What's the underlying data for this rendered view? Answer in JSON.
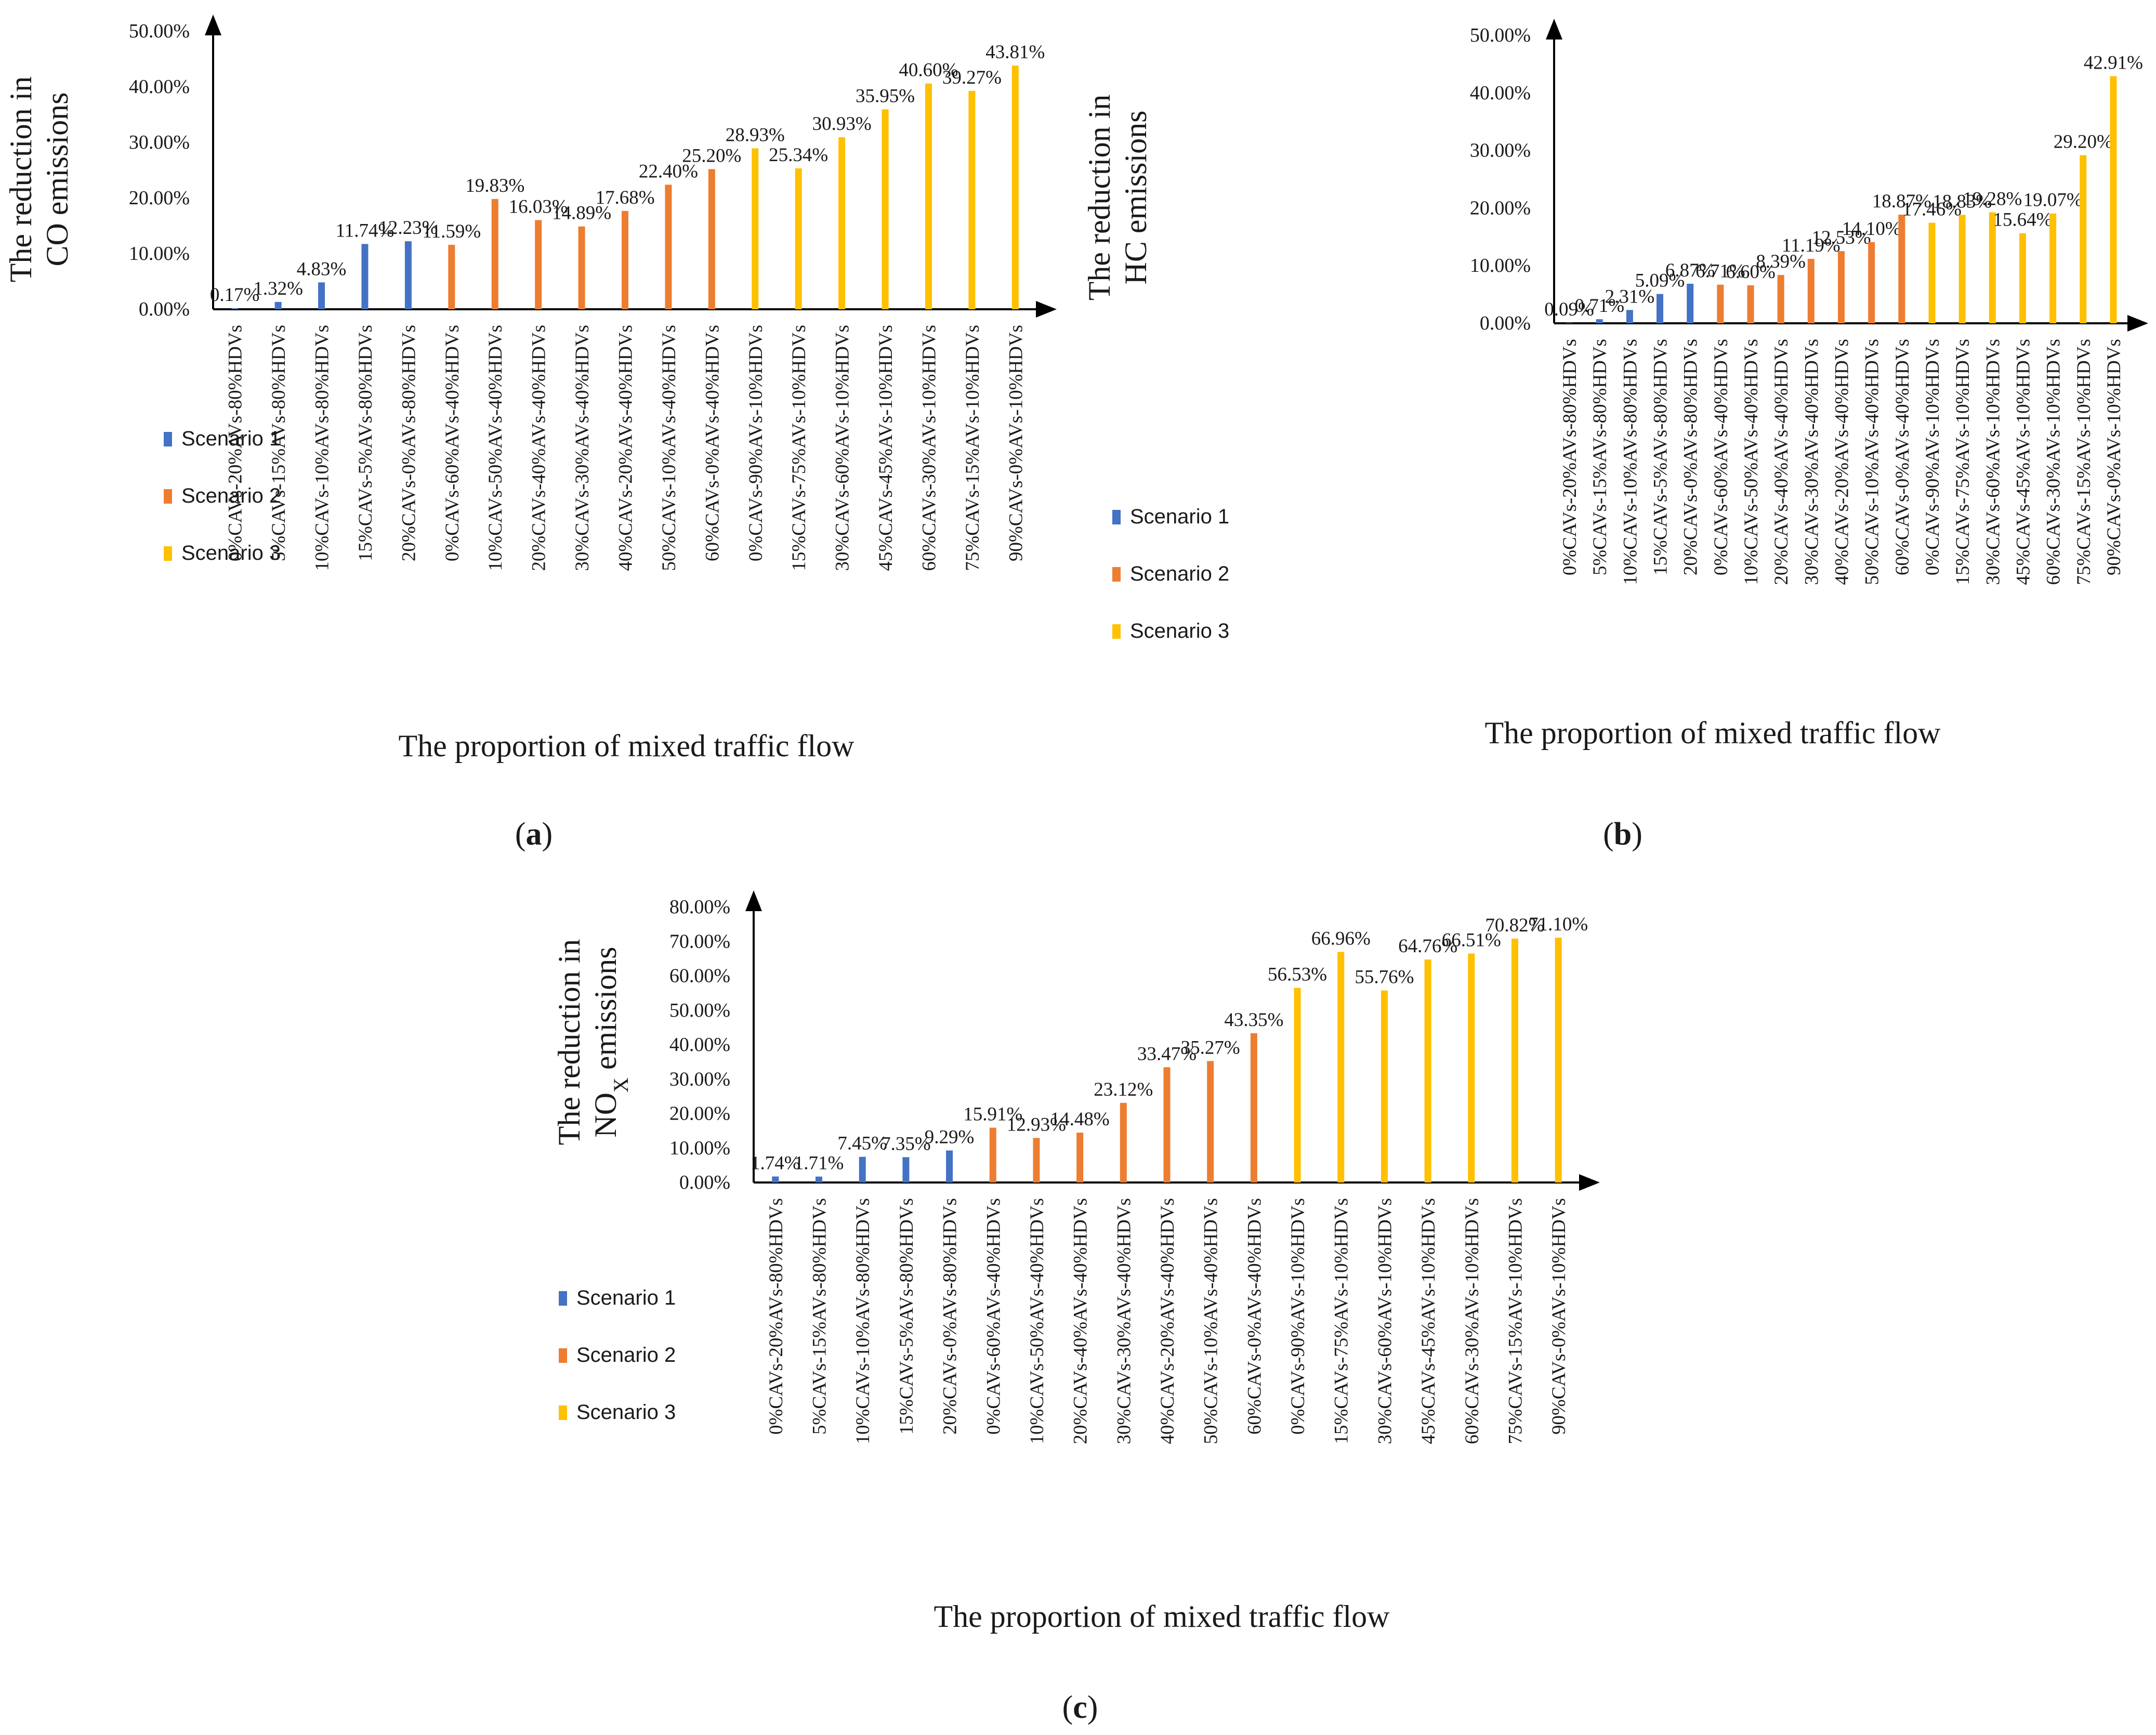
{
  "chart_data": [
    {
      "type": "bar",
      "panel_label": {
        "open": "(",
        "letter": "a",
        "close": ")"
      },
      "ylabel_line1": "The reduction in",
      "ylabel_line2": {
        "main": "CO emissions",
        "sub": ""
      },
      "xlabel": "The proportion of mixed traffic flow",
      "ylim": [
        0,
        50
      ],
      "yticks": [
        "0.00%",
        "10.00%",
        "20.00%",
        "30.00%",
        "40.00%",
        "50.00%"
      ],
      "categories": [
        "0%CAVs-20%AVs-80%HDVs",
        "5%CAVs-15%AVs-80%HDVs",
        "10%CAVs-10%AVs-80%HDVs",
        "15%CAVs-5%AVs-80%HDVs",
        "20%CAVs-0%AVs-80%HDVs",
        "0%CAVs-60%AVs-40%HDVs",
        "10%CAVs-50%AVs-40%HDVs",
        "20%CAVs-40%AVs-40%HDVs",
        "30%CAVs-30%AVs-40%HDVs",
        "40%CAVs-20%AVs-40%HDVs",
        "50%CAVs-10%AVs-40%HDVs",
        "60%CAVs-0%AVs-40%HDVs",
        "0%CAVs-90%AVs-10%HDVs",
        "15%CAVs-75%AVs-10%HDVs",
        "30%CAVs-60%AVs-10%HDVs",
        "45%CAVs-45%AVs-10%HDVs",
        "60%CAVs-30%AVs-10%HDVs",
        "75%CAVs-15%AVs-10%HDVs",
        "90%CAVs-0%AVs-10%HDVs"
      ],
      "values": [
        0.17,
        1.32,
        4.83,
        11.74,
        12.23,
        11.59,
        19.83,
        16.03,
        14.89,
        17.68,
        22.4,
        25.2,
        28.93,
        25.34,
        30.93,
        35.95,
        40.6,
        39.27,
        43.81
      ],
      "labels": [
        "0.17%",
        "1.32%",
        "4.83%",
        "11.74%",
        "12.23%",
        "11.59%",
        "19.83%",
        "16.03%",
        "14.89%",
        "17.68%",
        "22.40%",
        "25.20%",
        "28.93%",
        "25.34%",
        "30.93%",
        "35.95%",
        "40.60%",
        "39.27%",
        "43.81%"
      ],
      "scenario": [
        1,
        1,
        1,
        1,
        1,
        2,
        2,
        2,
        2,
        2,
        2,
        2,
        3,
        3,
        3,
        3,
        3,
        3,
        3
      ]
    },
    {
      "type": "bar",
      "panel_label": {
        "open": "(",
        "letter": "b",
        "close": ")"
      },
      "ylabel_line1": "The reduction in",
      "ylabel_line2": {
        "main": "HC emissions",
        "sub": ""
      },
      "xlabel": "The proportion of mixed traffic flow",
      "ylim": [
        0,
        50
      ],
      "yticks": [
        "0.00%",
        "10.00%",
        "20.00%",
        "30.00%",
        "40.00%",
        "50.00%"
      ],
      "categories": [
        "0%CAVs-20%AVs-80%HDVs",
        "5%CAVs-15%AVs-80%HDVs",
        "10%CAVs-10%AVs-80%HDVs",
        "15%CAVs-5%AVs-80%HDVs",
        "20%CAVs-0%AVs-80%HDVs",
        "0%CAVs-60%AVs-40%HDVs",
        "10%CAVs-50%AVs-40%HDVs",
        "20%CAVs-40%AVs-40%HDVs",
        "30%CAVs-30%AVs-40%HDVs",
        "40%CAVs-20%AVs-40%HDVs",
        "50%CAVs-10%AVs-40%HDVs",
        "60%CAVs-0%AVs-40%HDVs",
        "0%CAVs-90%AVs-10%HDVs",
        "15%CAVs-75%AVs-10%HDVs",
        "30%CAVs-60%AVs-10%HDVs",
        "45%CAVs-45%AVs-10%HDVs",
        "60%CAVs-30%AVs-10%HDVs",
        "75%CAVs-15%AVs-10%HDVs",
        "90%CAVs-0%AVs-10%HDVs"
      ],
      "values": [
        0.09,
        0.71,
        2.31,
        5.09,
        6.87,
        6.71,
        6.6,
        8.39,
        11.19,
        12.53,
        14.1,
        18.87,
        17.46,
        18.83,
        19.28,
        15.64,
        19.07,
        29.2,
        42.91
      ],
      "labels": [
        "0.09%",
        "0.71%",
        "2.31%",
        "5.09%",
        "6.87%",
        "6.71%",
        "6.60%",
        "8.39%",
        "11.19%",
        "12.53%",
        "14.10%",
        "18.87%",
        "17.46%",
        "18.83%",
        "19.28%",
        "15.64%",
        "19.07%",
        "29.20%",
        "42.91%"
      ],
      "scenario": [
        1,
        1,
        1,
        1,
        1,
        2,
        2,
        2,
        2,
        2,
        2,
        2,
        3,
        3,
        3,
        3,
        3,
        3,
        3
      ]
    },
    {
      "type": "bar",
      "panel_label": {
        "open": "(",
        "letter": "c",
        "close": ")"
      },
      "ylabel_line1": "The reduction in",
      "ylabel_line2": {
        "main": "NO",
        "sub": "X",
        "rest": " emissions"
      },
      "xlabel": "The proportion of mixed traffic flow",
      "ylim": [
        0,
        80
      ],
      "yticks": [
        "0.00%",
        "10.00%",
        "20.00%",
        "30.00%",
        "40.00%",
        "50.00%",
        "60.00%",
        "70.00%",
        "80.00%"
      ],
      "categories": [
        "0%CAVs-20%AVs-80%HDVs",
        "5%CAVs-15%AVs-80%HDVs",
        "10%CAVs-10%AVs-80%HDVs",
        "15%CAVs-5%AVs-80%HDVs",
        "20%CAVs-0%AVs-80%HDVs",
        "0%CAVs-60%AVs-40%HDVs",
        "10%CAVs-50%AVs-40%HDVs",
        "20%CAVs-40%AVs-40%HDVs",
        "30%CAVs-30%AVs-40%HDVs",
        "40%CAVs-20%AVs-40%HDVs",
        "50%CAVs-10%AVs-40%HDVs",
        "60%CAVs-0%AVs-40%HDVs",
        "0%CAVs-90%AVs-10%HDVs",
        "15%CAVs-75%AVs-10%HDVs",
        "30%CAVs-60%AVs-10%HDVs",
        "45%CAVs-45%AVs-10%HDVs",
        "60%CAVs-30%AVs-10%HDVs",
        "75%CAVs-15%AVs-10%HDVs",
        "90%CAVs-0%AVs-10%HDVs"
      ],
      "values": [
        1.74,
        1.71,
        7.45,
        7.35,
        9.29,
        15.91,
        12.93,
        14.48,
        23.12,
        33.47,
        35.27,
        43.35,
        56.53,
        66.96,
        55.76,
        64.76,
        66.51,
        70.82,
        71.1
      ],
      "labels": [
        "1.74%",
        "1.71%",
        "7.45%",
        "7.35%",
        "9.29%",
        "15.91%",
        "12.93%",
        "14.48%",
        "23.12%",
        "33.47%",
        "35.27%",
        "43.35%",
        "56.53%",
        "66.96%",
        "55.76%",
        "64.76%",
        "66.51%",
        "70.82%",
        "71.10%"
      ],
      "scenario": [
        1,
        1,
        1,
        1,
        1,
        2,
        2,
        2,
        2,
        2,
        2,
        2,
        3,
        3,
        3,
        3,
        3,
        3,
        3
      ]
    }
  ],
  "legend": [
    {
      "name": "Scenario 1",
      "color": "#4472C4"
    },
    {
      "name": "Scenario 2",
      "color": "#ED7D31"
    },
    {
      "name": "Scenario 3",
      "color": "#FFC000"
    }
  ]
}
